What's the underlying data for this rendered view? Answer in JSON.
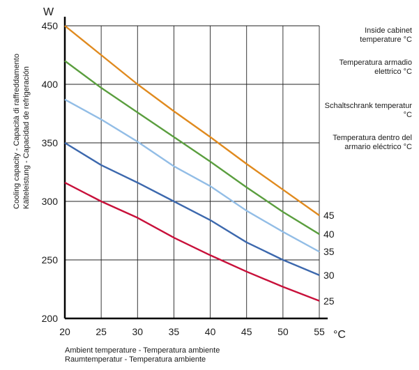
{
  "chart_data": {
    "type": "line",
    "x": [
      20,
      25,
      30,
      35,
      40,
      45,
      50,
      55
    ],
    "xlim": [
      20,
      55
    ],
    "ylim": [
      200,
      450
    ],
    "x_ticks": [
      20,
      25,
      30,
      35,
      40,
      45,
      50,
      55
    ],
    "y_ticks": [
      200,
      250,
      300,
      350,
      400,
      450
    ],
    "x_unit": "°C",
    "y_unit": "W",
    "xlabel_lines": [
      "Ambient temperature - Temperatura ambiente",
      "Raumtemperatur - Temperatura ambiente"
    ],
    "ylabel_lines": [
      "Cooling capacity - Capacità di raffreddamento",
      "Kälteleistung - Capacidad de refrigeración"
    ],
    "grid": true,
    "legend_placement": "right",
    "series": [
      {
        "name": "45",
        "color": "#e08a1e",
        "values": [
          450,
          425,
          400,
          377,
          355,
          332,
          310,
          288
        ]
      },
      {
        "name": "40",
        "color": "#5a9e3e",
        "values": [
          420,
          397,
          376,
          355,
          334,
          312,
          291,
          272
        ]
      },
      {
        "name": "35",
        "color": "#92bde6",
        "values": [
          387,
          370,
          351,
          330,
          313,
          292,
          274,
          257
        ]
      },
      {
        "name": "30",
        "color": "#3c68ad",
        "values": [
          350,
          331,
          316,
          300,
          284,
          265,
          250,
          237
        ]
      },
      {
        "name": "25",
        "color": "#c8103a",
        "values": [
          316,
          300,
          286,
          269,
          254,
          240,
          227,
          215
        ]
      }
    ]
  },
  "legend_notes": [
    "Inside cabinet temperature °C",
    "Temperatura armadio elettrico °C",
    "Schaltschrank temperatur °C",
    "Temperatura dentro del armario eléctrico °C"
  ]
}
